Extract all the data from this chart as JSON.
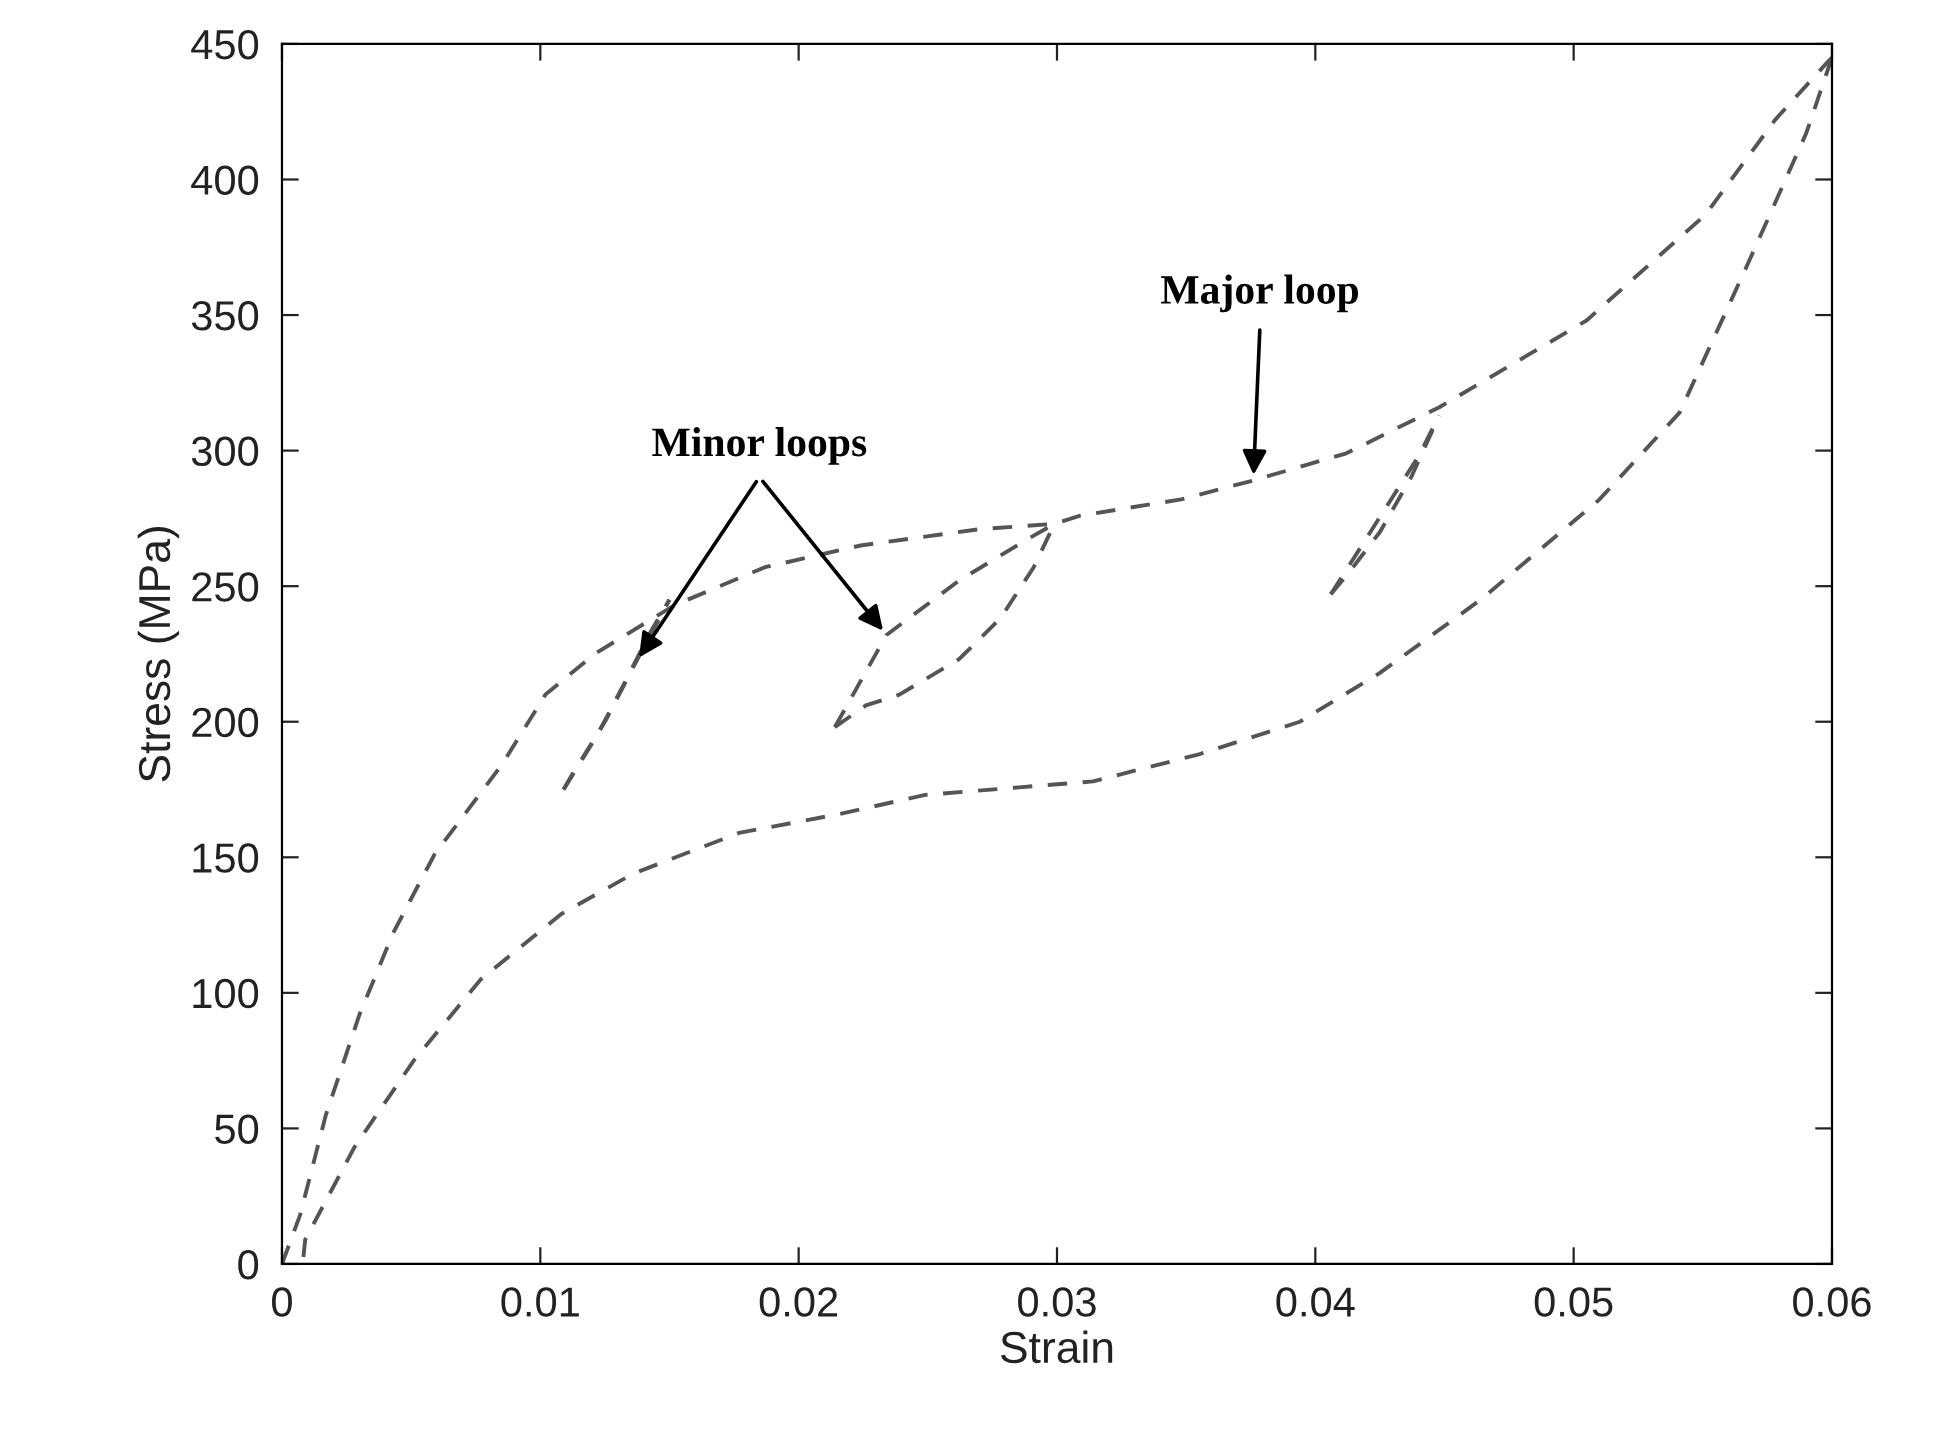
{
  "chart_data": {
    "type": "line",
    "xlabel": "Strain",
    "ylabel": "Stress (MPa)",
    "xlim": [
      0,
      0.06
    ],
    "ylim": [
      0,
      450
    ],
    "xticks": [
      0,
      0.01,
      0.02,
      0.03,
      0.04,
      0.05,
      0.06
    ],
    "yticks": [
      0,
      50,
      100,
      150,
      200,
      250,
      300,
      350,
      400,
      450
    ],
    "grid": false,
    "line_style": "dashed",
    "marker": "none",
    "series": [
      {
        "color": "#555555",
        "x": [
          0,
          0.0007,
          0.0017,
          0.003,
          0.0043,
          0.0059,
          0.0085,
          0.0102,
          0.0121,
          0.0152,
          0.0187,
          0.0224,
          0.027,
          0.0299,
          0.0309,
          0.0348,
          0.0376,
          0.0412,
          0.0448,
          0.0505,
          0.0551,
          0.0578,
          0.0598,
          0.06
        ],
        "values": [
          0,
          18,
          55,
          92,
          122,
          151,
          184,
          210,
          225,
          243,
          257,
          265,
          271,
          273,
          276,
          282,
          289,
          299,
          316,
          348,
          387,
          422,
          443,
          445
        ]
      },
      {
        "color": "#555555",
        "x": [
          0.06,
          0.059,
          0.0567,
          0.0541,
          0.051,
          0.0464,
          0.0425,
          0.0394,
          0.0355,
          0.0314,
          0.0249,
          0.0216,
          0.0177,
          0.0136,
          0.0108,
          0.0077,
          0.0051,
          0.0028,
          0.0009,
          0.0008
        ],
        "values": [
          445,
          417,
          368,
          314,
          282,
          245,
          218,
          200,
          188,
          178,
          173,
          166,
          159,
          144,
          129,
          105,
          75,
          43,
          9,
          0
        ]
      },
      {
        "color": "#555555",
        "x": [
          0.0109,
          0.0112,
          0.0125,
          0.0137,
          0.015
        ],
        "values": [
          175,
          180,
          200,
          222,
          245
        ]
      },
      {
        "color": "#555555",
        "x": [
          0.0109,
          0.0122,
          0.0133,
          0.0142,
          0.015
        ],
        "values": [
          175,
          195,
          215,
          232,
          245
        ]
      },
      {
        "color": "#555555",
        "x": [
          0.0214,
          0.0226,
          0.0239,
          0.0262,
          0.0278,
          0.0291,
          0.0299
        ],
        "values": [
          198,
          206,
          210,
          223,
          238,
          257,
          273
        ]
      },
      {
        "color": "#555555",
        "x": [
          0.0214,
          0.0234,
          0.0262,
          0.0288,
          0.0299
        ],
        "values": [
          198,
          232,
          252,
          267,
          273
        ]
      },
      {
        "color": "#555555",
        "x": [
          0.0406,
          0.0413,
          0.0425,
          0.0437,
          0.0448
        ],
        "values": [
          247,
          255,
          270,
          290,
          313
        ]
      },
      {
        "color": "#555555",
        "x": [
          0.0406,
          0.0418,
          0.043,
          0.044,
          0.0448
        ],
        "values": [
          247,
          265,
          283,
          298,
          313
        ]
      }
    ],
    "annotations": [
      {
        "text": "Minor loops",
        "x": 0.0137,
        "y": 222
      },
      {
        "text": "Major loop",
        "x": 0.0376,
        "y": 289
      }
    ]
  }
}
